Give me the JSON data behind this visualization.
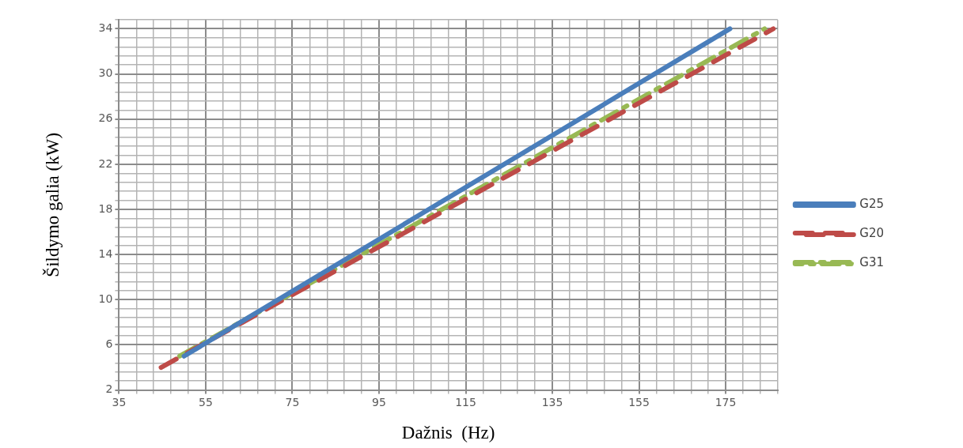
{
  "chart_data": {
    "type": "line",
    "xlabel": "Dažnis  (Hz)",
    "ylabel": "Šildymo galia (kW)",
    "legend": "right",
    "grid": true,
    "marker": "none",
    "xlim": [
      35,
      187
    ],
    "xticks": [
      35,
      {
        "value": 39,
        "label": null
      },
      {
        "value": 43,
        "label": null
      },
      {
        "value": 47,
        "label": null
      },
      {
        "value": 51,
        "label": null
      },
      55,
      {
        "value": 59,
        "label": null
      },
      {
        "value": 63,
        "label": null
      },
      {
        "value": 67,
        "label": null
      },
      {
        "value": 71,
        "label": null
      },
      75,
      {
        "value": 79,
        "label": null
      },
      {
        "value": 83,
        "label": null
      },
      {
        "value": 87,
        "label": null
      },
      {
        "value": 91,
        "label": null
      },
      95,
      {
        "value": 99,
        "label": null
      },
      {
        "value": 103,
        "label": null
      },
      {
        "value": 107,
        "label": null
      },
      {
        "value": 111,
        "label": null
      },
      115,
      {
        "value": 119,
        "label": null
      },
      {
        "value": 123,
        "label": null
      },
      {
        "value": 127,
        "label": null
      },
      {
        "value": 131,
        "label": null
      },
      135,
      {
        "value": 139,
        "label": null
      },
      {
        "value": 143,
        "label": null
      },
      {
        "value": 147,
        "label": null
      },
      {
        "value": 151,
        "label": null
      },
      155,
      {
        "value": 159,
        "label": null
      },
      {
        "value": 163,
        "label": null
      },
      {
        "value": 167,
        "label": null
      },
      {
        "value": 171,
        "label": null
      },
      175,
      {
        "value": 179,
        "label": null
      },
      {
        "value": 183,
        "label": null
      },
      {
        "value": 187,
        "label": null
      }
    ],
    "ylim": [
      2,
      34.8
    ],
    "yticks": [
      2,
      {
        "value": 2.8,
        "label": null
      },
      {
        "value": 3.6,
        "label": null
      },
      {
        "value": 4.4,
        "label": null
      },
      {
        "value": 5.2,
        "label": null
      },
      6,
      {
        "value": 6.8,
        "label": null
      },
      {
        "value": 7.6,
        "label": null
      },
      {
        "value": 8.4,
        "label": null
      },
      {
        "value": 9.2,
        "label": null
      },
      10,
      {
        "value": 10.8,
        "label": null
      },
      {
        "value": 11.6,
        "label": null
      },
      {
        "value": 12.4,
        "label": null
      },
      {
        "value": 13.2,
        "label": null
      },
      14,
      {
        "value": 14.8,
        "label": null
      },
      {
        "value": 15.6,
        "label": null
      },
      {
        "value": 16.4,
        "label": null
      },
      {
        "value": 17.2,
        "label": null
      },
      18,
      {
        "value": 18.8,
        "label": null
      },
      {
        "value": 19.6,
        "label": null
      },
      {
        "value": 20.4,
        "label": null
      },
      {
        "value": 21.2,
        "label": null
      },
      22,
      {
        "value": 22.8,
        "label": null
      },
      {
        "value": 23.6,
        "label": null
      },
      {
        "value": 24.4,
        "label": null
      },
      {
        "value": 25.2,
        "label": null
      },
      26,
      {
        "value": 26.8,
        "label": null
      },
      {
        "value": 27.6,
        "label": null
      },
      {
        "value": 28.4,
        "label": null
      },
      {
        "value": 29.2,
        "label": null
      },
      30,
      {
        "value": 30.8,
        "label": null
      },
      {
        "value": 31.6,
        "label": null
      },
      {
        "value": 32.4,
        "label": null
      },
      {
        "value": 33.2,
        "label": null
      },
      34,
      {
        "value": 34.8,
        "label": null
      }
    ],
    "series": [
      {
        "name": "G25",
        "color": "#4a7ebb",
        "line_style": "solid",
        "x": [
          50,
          176
        ],
        "values": [
          5,
          34
        ]
      },
      {
        "name": "G20",
        "color": "#be4b48",
        "line_style": "dashed",
        "x": [
          44.7,
          186
        ],
        "values": [
          4,
          34
        ]
      },
      {
        "name": "G31",
        "color": "#98b954",
        "line_style": "dashdot",
        "x": [
          49,
          184
        ],
        "values": [
          5,
          34
        ]
      }
    ]
  }
}
